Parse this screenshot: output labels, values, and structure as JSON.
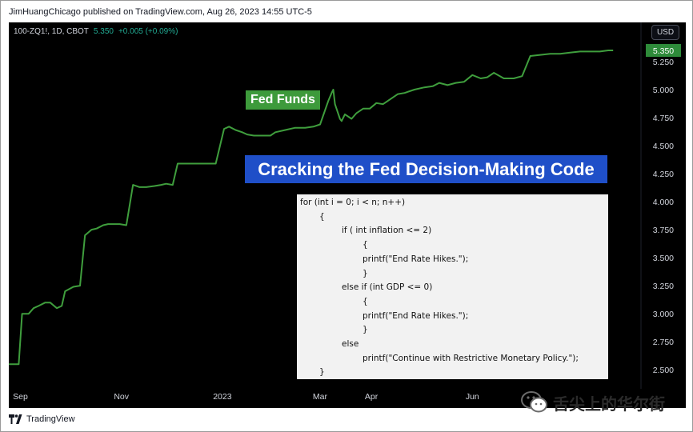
{
  "header": {
    "attribution": "JimHuangChicago published on TradingView.com, Aug 26, 2023 14:55 UTC-5"
  },
  "symbol": {
    "name": "100-ZQ1!, 1D, CBOT",
    "price": "5.350",
    "change": "+0.005 (+0.09%)"
  },
  "currency_button": "USD",
  "annotations": {
    "series_label": "Fed Funds",
    "headline": "Cracking the Fed Decision-Making Code"
  },
  "code_lines": [
    "for (int i = 0; i < n; n++)",
    "{",
    "if ( int inflation <= 2)",
    "{",
    "printf(\"End Rate Hikes.\");",
    "}",
    "else if (int GDP <= 0)",
    "{",
    "printf(\"End Rate Hikes.\");",
    "}",
    "else",
    "printf(\"Continue with Restrictive Monetary Policy.\");",
    "}"
  ],
  "footer": {
    "brand": "TradingView"
  },
  "watermark": {
    "text": "舌尖上的华尔街"
  },
  "colors": {
    "line": "#3f9e3d",
    "price_tag": "#2e8b3a",
    "headline_bg": "#1f4fc8",
    "label_bg": "#3d9a3b",
    "background": "#000000"
  },
  "chart_data": {
    "type": "line",
    "series": [
      {
        "name": "100-ZQ1!",
        "x": [
          "2022-08-25",
          "2022-08-29",
          "2022-08-31",
          "2022-09-02",
          "2022-09-06",
          "2022-09-09",
          "2022-09-12",
          "2022-09-16",
          "2022-09-19",
          "2022-09-23",
          "2022-09-26",
          "2022-09-28",
          "2022-10-03",
          "2022-10-07",
          "2022-10-10",
          "2022-10-14",
          "2022-10-17",
          "2022-10-21",
          "2022-10-24",
          "2022-10-28",
          "2022-10-31",
          "2022-11-04",
          "2022-11-08",
          "2022-11-12",
          "2022-11-16",
          "2022-11-21",
          "2022-11-25",
          "2022-11-28",
          "2022-12-02",
          "2022-12-05",
          "2022-12-09",
          "2022-12-12",
          "2022-12-16",
          "2022-12-20",
          "2022-12-24",
          "2022-12-28",
          "2023-01-02",
          "2023-01-05",
          "2023-01-09",
          "2023-01-13",
          "2023-01-16",
          "2023-01-20",
          "2023-01-25",
          "2023-01-30",
          "2023-02-02",
          "2023-02-08",
          "2023-02-14",
          "2023-02-20",
          "2023-02-25",
          "2023-03-01",
          "2023-03-06",
          "2023-03-08",
          "2023-03-09",
          "2023-03-10",
          "2023-03-13",
          "2023-03-14",
          "2023-03-16",
          "2023-03-20",
          "2023-03-23",
          "2023-03-27",
          "2023-03-31",
          "2023-04-04",
          "2023-04-08",
          "2023-04-12",
          "2023-04-17",
          "2023-04-21",
          "2023-04-27",
          "2023-05-03",
          "2023-05-08",
          "2023-05-12",
          "2023-05-17",
          "2023-05-22",
          "2023-05-27",
          "2023-06-01",
          "2023-06-06",
          "2023-06-10",
          "2023-06-14",
          "2023-06-20",
          "2023-06-26",
          "2023-07-01",
          "2023-07-06",
          "2023-07-12",
          "2023-07-18",
          "2023-07-24",
          "2023-07-30",
          "2023-08-05",
          "2023-08-11",
          "2023-08-17",
          "2023-08-22",
          "2023-08-25"
        ],
        "values": [
          2.55,
          2.55,
          2.55,
          3.0,
          3.0,
          3.05,
          3.07,
          3.1,
          3.1,
          3.05,
          3.07,
          3.2,
          3.24,
          3.25,
          3.7,
          3.75,
          3.76,
          3.79,
          3.8,
          3.8,
          3.8,
          3.79,
          4.15,
          4.13,
          4.13,
          4.14,
          4.15,
          4.16,
          4.15,
          4.34,
          4.34,
          4.34,
          4.34,
          4.34,
          4.34,
          4.34,
          4.65,
          4.67,
          4.64,
          4.62,
          4.6,
          4.59,
          4.59,
          4.59,
          4.62,
          4.64,
          4.66,
          4.66,
          4.67,
          4.69,
          4.9,
          4.97,
          5.0,
          4.87,
          4.74,
          4.72,
          4.78,
          4.74,
          4.79,
          4.83,
          4.83,
          4.88,
          4.87,
          4.91,
          4.96,
          4.97,
          5.0,
          5.02,
          5.03,
          5.06,
          5.04,
          5.06,
          5.07,
          5.13,
          5.1,
          5.11,
          5.15,
          5.1,
          5.1,
          5.12,
          5.3,
          5.31,
          5.32,
          5.32,
          5.33,
          5.34,
          5.34,
          5.34,
          5.35,
          5.35
        ]
      }
    ],
    "x_ticks": [
      {
        "label": "Sep",
        "date": "2022-09-01"
      },
      {
        "label": "Nov",
        "date": "2022-11-01"
      },
      {
        "label": "2023",
        "date": "2023-01-01"
      },
      {
        "label": "Mar",
        "date": "2023-03-01"
      },
      {
        "label": "Apr",
        "date": "2023-04-01"
      },
      {
        "label": "Jun",
        "date": "2023-06-01"
      }
    ],
    "y_ticks": [
      2.5,
      2.75,
      3.0,
      3.25,
      3.5,
      3.75,
      4.0,
      4.25,
      4.5,
      4.75,
      5.0,
      5.25
    ],
    "xlim": [
      "2022-08-25",
      "2023-09-06"
    ],
    "ylim": [
      2.33,
      5.6
    ],
    "last_price_label": "5.350",
    "grid": false
  }
}
